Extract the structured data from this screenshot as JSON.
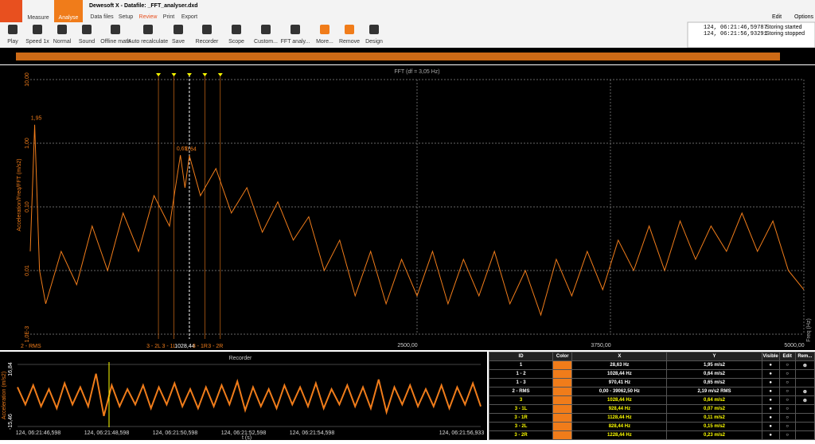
{
  "header": {
    "title": "Dewesoft X - Datafile: _FFT_analyser.dxd",
    "tabs": [
      "Measure",
      "Analyse"
    ],
    "menu": [
      "Data files",
      "Setup",
      "Review",
      "Print",
      "Export"
    ],
    "right": [
      "Edit",
      "Options"
    ]
  },
  "toolbar": [
    "Play",
    "Speed 1x",
    "Normal",
    "Sound",
    "Offline math",
    "Auto recalculate",
    "Save",
    "Recorder",
    "Scope",
    "Custom...",
    "FFT analy...",
    "More...",
    "Remove",
    "Design"
  ],
  "log": [
    [
      "124, 06:21:46,59787",
      "Storing started"
    ],
    [
      "124, 06:21:56,93291",
      "Storing stopped"
    ]
  ],
  "fft": {
    "type": "line",
    "title": "FFT (df = 3,05 Hz)",
    "y_label": "Acceleration/Freq/FFT (m/s2)",
    "x_label": "Freq (Hz)",
    "channel": "2 - RMS",
    "color": "#f07c1a",
    "log_y": true,
    "x": [
      0,
      28.63,
      60,
      100,
      200,
      300,
      400,
      500,
      600,
      700,
      800,
      900,
      970.41,
      1000,
      1028.44,
      1100,
      1200,
      1300,
      1400,
      1500,
      1600,
      1700,
      1800,
      1900,
      2000,
      2100,
      2200,
      2300,
      2400,
      2500,
      2600,
      2700,
      2800,
      2900,
      3000,
      3100,
      3200,
      3300,
      3400,
      3500,
      3600,
      3700,
      3800,
      3900,
      4000,
      4100,
      4200,
      4300,
      4400,
      4500,
      4600,
      4700,
      4800,
      4900,
      5000
    ],
    "values": [
      0.02,
      1.95,
      0.01,
      0.003,
      0.02,
      0.006,
      0.05,
      0.01,
      0.08,
      0.02,
      0.15,
      0.05,
      0.65,
      0.2,
      0.64,
      0.15,
      0.4,
      0.08,
      0.2,
      0.04,
      0.12,
      0.03,
      0.07,
      0.01,
      0.03,
      0.004,
      0.02,
      0.003,
      0.015,
      0.004,
      0.02,
      0.003,
      0.015,
      0.004,
      0.02,
      0.003,
      0.01,
      0.002,
      0.015,
      0.004,
      0.02,
      0.005,
      0.03,
      0.01,
      0.05,
      0.01,
      0.06,
      0.015,
      0.05,
      0.02,
      0.08,
      0.02,
      0.06,
      0.01,
      0.005
    ],
    "value_labels": [
      null,
      "1,95",
      null,
      null,
      null,
      null,
      null,
      null,
      null,
      null,
      null,
      null,
      "0,65",
      null,
      "0,64",
      null,
      null,
      null,
      null,
      null,
      null,
      null,
      null,
      null,
      null,
      null,
      null,
      null,
      null,
      null,
      null,
      null,
      null,
      null,
      null,
      null,
      null,
      null,
      null,
      null,
      null,
      null,
      null,
      null,
      null,
      null,
      null,
      null,
      null,
      null,
      null,
      null,
      null,
      null,
      null
    ],
    "xlim": [
      0,
      5000
    ],
    "ylim": [
      0.001,
      10
    ],
    "xticks": [
      {
        "value": 2500,
        "label": "2500,00"
      },
      {
        "value": 3750,
        "label": "3750,00"
      },
      {
        "value": 5000,
        "label": "5000,00"
      }
    ],
    "yticks": [
      {
        "value": 10,
        "label": "10,00"
      },
      {
        "value": 1,
        "label": "1,00"
      },
      {
        "value": 0.1,
        "label": "0,10"
      },
      {
        "value": 0.01,
        "label": "0,01"
      },
      {
        "value": 0.001,
        "label": "1,0E-3"
      }
    ],
    "cursor_x": [
      828.44,
      928.44,
      1028.44,
      1128.44,
      1228.44
    ],
    "cursor_names": [
      "3 - 2L",
      "3 - 1L",
      "1028,44",
      "3 - 1R",
      "3 - 2R"
    ]
  },
  "recorder": {
    "type": "line",
    "title": "Recorder",
    "y_label": "Acceleration (m/s2)",
    "x_label": "t (s)",
    "color": "#f07c1a",
    "ylim": [
      -15.46,
      16.84
    ],
    "yticks": [
      {
        "value": 16.84,
        "label": "16,84"
      },
      {
        "value": -15.46,
        "label": "-15,46"
      }
    ],
    "time_labels": [
      "124, 06:21:46,598",
      "124, 06:21:48,598",
      "124, 06:21:50,598",
      "124, 06:21:52,598",
      "124, 06:21:54,598",
      "124, 06:21:56,933"
    ],
    "values": [
      5,
      -4,
      6,
      -5,
      4,
      -6,
      7,
      -4,
      5,
      -5,
      12,
      -10,
      6,
      -5,
      4,
      -4,
      6,
      -6,
      5,
      -4,
      7,
      -5,
      4,
      -6,
      5,
      -5,
      6,
      -4,
      8,
      -7,
      5,
      -5,
      4,
      -6,
      6,
      -4,
      5,
      -5,
      7,
      -6,
      4,
      -4,
      6,
      -5,
      5,
      -6,
      9,
      -8,
      5,
      -4,
      6,
      -5,
      4,
      -5,
      6,
      -6,
      5,
      -4,
      7,
      -5
    ]
  },
  "table": {
    "columns": [
      "ID",
      "Color",
      "X",
      "Y",
      "Visible",
      "Edit",
      "Rem..."
    ],
    "rows": [
      [
        "1",
        "28,63 Hz",
        "1,95 m/s2"
      ],
      [
        "1 - 2",
        "1028,44 Hz",
        "0,64 m/s2"
      ],
      [
        "1 - 3",
        "970,41 Hz",
        "0,65 m/s2"
      ],
      [
        "2 - RMS",
        "0,00 - 39062,50 Hz",
        "2,19 m/s2 RMS"
      ],
      [
        "3",
        "1028,44 Hz",
        "0,64 m/s2"
      ],
      [
        "3 - 1L",
        "928,44 Hz",
        "0,07 m/s2"
      ],
      [
        "3 - 1R",
        "1128,44 Hz",
        "0,11 m/s2"
      ],
      [
        "3 - 2L",
        "828,44 Hz",
        "0,15 m/s2"
      ],
      [
        "3 - 2R",
        "1228,44 Hz",
        "0,23 m/s2"
      ]
    ]
  }
}
